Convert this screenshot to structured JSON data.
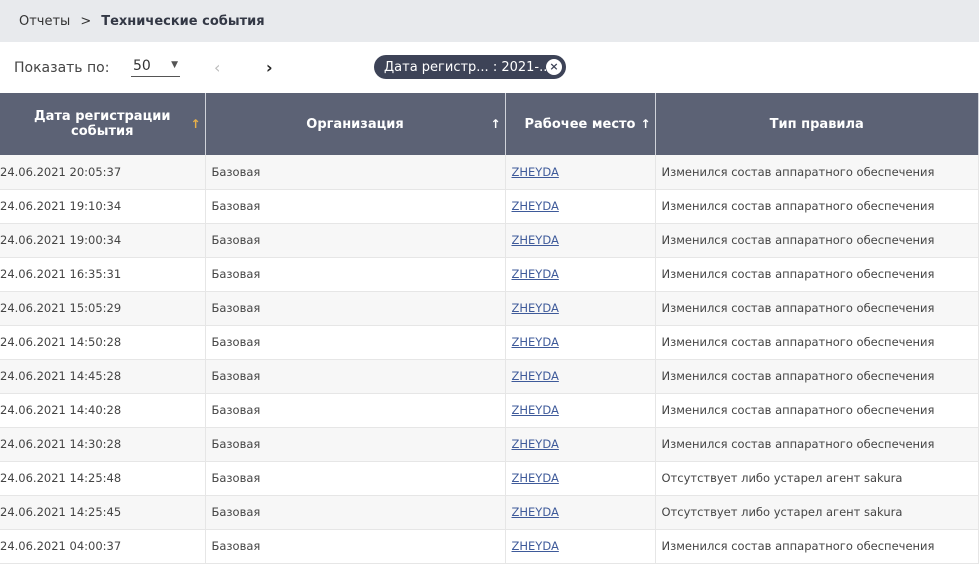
{
  "breadcrumb": {
    "root": "Отчеты",
    "current": "Технические события"
  },
  "toolbar": {
    "page_size_label": "Показать по:",
    "page_size": "50",
    "filter_chip": "Дата регистр... : 2021-..."
  },
  "table": {
    "columns": [
      "Дата регистрации события",
      "Организация",
      "Рабочее место",
      "Тип правила"
    ],
    "rows": [
      [
        "24.06.2021 20:05:37",
        "Базовая",
        "ZHEYDA",
        "Изменился состав аппаратного обеспечения"
      ],
      [
        "24.06.2021 19:10:34",
        "Базовая",
        "ZHEYDA",
        "Изменился состав аппаратного обеспечения"
      ],
      [
        "24.06.2021 19:00:34",
        "Базовая",
        "ZHEYDA",
        "Изменился состав аппаратного обеспечения"
      ],
      [
        "24.06.2021 16:35:31",
        "Базовая",
        "ZHEYDA",
        "Изменился состав аппаратного обеспечения"
      ],
      [
        "24.06.2021 15:05:29",
        "Базовая",
        "ZHEYDA",
        "Изменился состав аппаратного обеспечения"
      ],
      [
        "24.06.2021 14:50:28",
        "Базовая",
        "ZHEYDA",
        "Изменился состав аппаратного обеспечения"
      ],
      [
        "24.06.2021 14:45:28",
        "Базовая",
        "ZHEYDA",
        "Изменился состав аппаратного обеспечения"
      ],
      [
        "24.06.2021 14:40:28",
        "Базовая",
        "ZHEYDA",
        "Изменился состав аппаратного обеспечения"
      ],
      [
        "24.06.2021 14:30:28",
        "Базовая",
        "ZHEYDA",
        "Изменился состав аппаратного обеспечения"
      ],
      [
        "24.06.2021 14:25:48",
        "Базовая",
        "ZHEYDA",
        "Отсутствует либо устарел агент sakura"
      ],
      [
        "24.06.2021 14:25:45",
        "Базовая",
        "ZHEYDA",
        "Отсутствует либо устарел агент sakura"
      ],
      [
        "24.06.2021 04:00:37",
        "Базовая",
        "ZHEYDA",
        "Изменился состав аппаратного обеспечения"
      ]
    ]
  },
  "colors": {
    "header_bg": "#5c6275",
    "active_sort": "#e8b04a",
    "link": "#3e5a9a",
    "chip_bg": "#3d4357"
  }
}
